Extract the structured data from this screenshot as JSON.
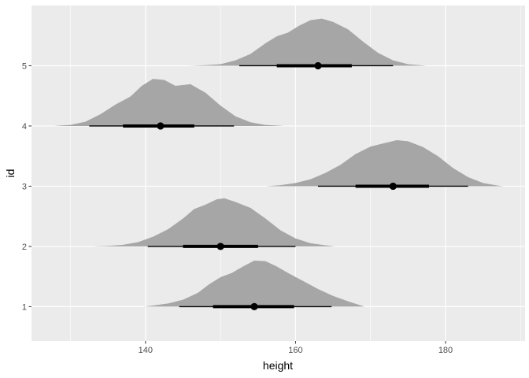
{
  "chart_data": {
    "type": "halfeye",
    "xlabel": "height",
    "ylabel": "id",
    "xlim": [
      124.8,
      190.6
    ],
    "ylim": [
      0.43,
      6.0
    ],
    "x_ticks": [
      140,
      160,
      180
    ],
    "x_tick_labels": [
      "140",
      "160",
      "180"
    ],
    "y_ticks": [
      1,
      2,
      3,
      4,
      5
    ],
    "y_tick_labels": [
      "1",
      "2",
      "3",
      "4",
      "5"
    ],
    "grid": true,
    "panel_background": "#ebebeb",
    "grid_color": "#ffffff",
    "density_fill": "#a6a6a6",
    "interval_color": "#000000",
    "series": [
      {
        "id": "1",
        "median": 154.5,
        "interval_66": [
          149.0,
          159.8
        ],
        "interval_95": [
          144.5,
          164.8
        ],
        "density": [
          [
            139.8,
            0.0
          ],
          [
            141.0,
            0.02
          ],
          [
            143.0,
            0.06
          ],
          [
            145.0,
            0.13
          ],
          [
            147.0,
            0.26
          ],
          [
            148.5,
            0.42
          ],
          [
            150.0,
            0.55
          ],
          [
            151.5,
            0.63
          ],
          [
            153.0,
            0.75
          ],
          [
            154.5,
            0.86
          ],
          [
            156.0,
            0.85
          ],
          [
            157.5,
            0.75
          ],
          [
            159.0,
            0.63
          ],
          [
            161.0,
            0.48
          ],
          [
            163.0,
            0.33
          ],
          [
            165.0,
            0.2
          ],
          [
            167.0,
            0.1
          ],
          [
            169.2,
            0.0
          ]
        ]
      },
      {
        "id": "2",
        "median": 150.0,
        "interval_66": [
          145.0,
          155.0
        ],
        "interval_95": [
          140.3,
          160.0
        ],
        "density": [
          [
            132.9,
            0.0
          ],
          [
            135.0,
            0.01
          ],
          [
            137.0,
            0.03
          ],
          [
            139.0,
            0.08
          ],
          [
            141.0,
            0.18
          ],
          [
            143.0,
            0.32
          ],
          [
            145.0,
            0.52
          ],
          [
            146.5,
            0.7
          ],
          [
            148.0,
            0.78
          ],
          [
            149.5,
            0.88
          ],
          [
            150.5,
            0.9
          ],
          [
            152.0,
            0.83
          ],
          [
            154.0,
            0.72
          ],
          [
            156.0,
            0.52
          ],
          [
            158.0,
            0.3
          ],
          [
            160.0,
            0.15
          ],
          [
            162.0,
            0.06
          ],
          [
            164.0,
            0.02
          ],
          [
            165.3,
            0.0
          ]
        ]
      },
      {
        "id": "3",
        "median": 173.0,
        "interval_66": [
          168.0,
          177.8
        ],
        "interval_95": [
          163.0,
          183.0
        ],
        "density": [
          [
            156.0,
            0.0
          ],
          [
            158.0,
            0.02
          ],
          [
            160.0,
            0.06
          ],
          [
            162.0,
            0.13
          ],
          [
            164.0,
            0.25
          ],
          [
            166.0,
            0.4
          ],
          [
            168.0,
            0.6
          ],
          [
            170.0,
            0.74
          ],
          [
            172.0,
            0.81
          ],
          [
            173.5,
            0.86
          ],
          [
            175.0,
            0.84
          ],
          [
            177.0,
            0.73
          ],
          [
            179.0,
            0.56
          ],
          [
            181.0,
            0.34
          ],
          [
            183.0,
            0.17
          ],
          [
            185.0,
            0.06
          ],
          [
            187.0,
            0.01
          ],
          [
            187.8,
            0.0
          ]
        ]
      },
      {
        "id": "4",
        "median": 142.0,
        "interval_66": [
          137.0,
          146.5
        ],
        "interval_95": [
          132.5,
          151.8
        ],
        "density": [
          [
            127.8,
            0.0
          ],
          [
            130.0,
            0.02
          ],
          [
            132.0,
            0.08
          ],
          [
            134.0,
            0.22
          ],
          [
            136.0,
            0.4
          ],
          [
            138.0,
            0.55
          ],
          [
            139.5,
            0.75
          ],
          [
            141.0,
            0.88
          ],
          [
            142.5,
            0.86
          ],
          [
            144.0,
            0.75
          ],
          [
            146.0,
            0.78
          ],
          [
            148.0,
            0.62
          ],
          [
            150.0,
            0.38
          ],
          [
            152.0,
            0.18
          ],
          [
            154.0,
            0.07
          ],
          [
            156.0,
            0.02
          ],
          [
            158.5,
            0.0
          ]
        ]
      },
      {
        "id": "5",
        "median": 163.0,
        "interval_66": [
          157.5,
          167.5
        ],
        "interval_95": [
          152.5,
          173.0
        ],
        "density": [
          [
            145.5,
            0.0
          ],
          [
            148.0,
            0.01
          ],
          [
            150.0,
            0.03
          ],
          [
            152.0,
            0.1
          ],
          [
            154.0,
            0.22
          ],
          [
            156.0,
            0.42
          ],
          [
            157.5,
            0.55
          ],
          [
            159.0,
            0.62
          ],
          [
            160.5,
            0.75
          ],
          [
            162.0,
            0.85
          ],
          [
            163.5,
            0.88
          ],
          [
            165.0,
            0.82
          ],
          [
            167.0,
            0.68
          ],
          [
            169.0,
            0.45
          ],
          [
            171.0,
            0.24
          ],
          [
            173.0,
            0.1
          ],
          [
            175.0,
            0.03
          ],
          [
            177.5,
            0.0
          ]
        ]
      }
    ]
  }
}
